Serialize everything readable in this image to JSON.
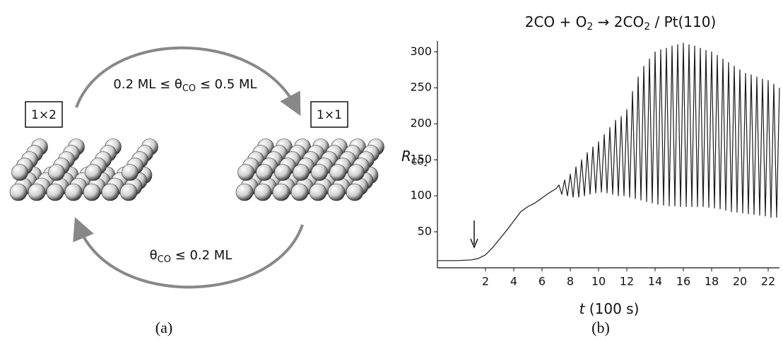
{
  "panel_a": {
    "left_label": "1×2",
    "right_label": "1×1",
    "top_condition": {
      "before": "0.2 ML ≤ θ",
      "sub": "CO",
      "after": " ≤ 0.5 ML"
    },
    "bottom_condition": {
      "before": "θ",
      "sub": "CO",
      "after": " ≤ 0.2 ML"
    },
    "caption": "(a)"
  },
  "chart_data": {
    "type": "line",
    "title": {
      "parts": [
        "2CO + O",
        "2",
        " → 2CO",
        "2",
        " / Pt(110)"
      ]
    },
    "y_label": {
      "main": "R",
      "sub": "CO",
      "subsub": "2"
    },
    "x_label": {
      "var": "t",
      "unit": " (100 s)"
    },
    "caption": "(b)",
    "color": "#1a1a1a",
    "xlim": [
      -1.4,
      22.8
    ],
    "ylim": [
      0,
      315
    ],
    "xticks": [
      2,
      4,
      6,
      8,
      10,
      12,
      14,
      16,
      18,
      20,
      22
    ],
    "yticks": [
      50,
      100,
      150,
      200,
      250,
      300
    ],
    "x": [
      -1.4,
      0,
      1,
      1.5,
      2,
      2.5,
      3,
      3.5,
      4,
      4.5,
      5,
      5.5,
      6,
      6.5,
      7,
      7.2,
      7.4,
      7.6,
      7.8,
      8.0,
      8.2,
      8.4,
      8.6,
      8.8,
      9.0,
      9.2,
      9.4,
      9.6,
      9.8,
      10.0,
      10.2,
      10.4,
      10.6,
      10.8,
      11.0,
      11.2,
      11.4,
      11.6,
      11.8,
      12.0,
      12.2,
      12.4,
      12.6,
      12.8,
      13.0,
      13.2,
      13.4,
      13.6,
      13.8,
      14.0,
      14.2,
      14.4,
      14.6,
      14.8,
      15.0,
      15.2,
      15.4,
      15.6,
      15.8,
      16.0,
      16.2,
      16.4,
      16.6,
      16.8,
      17.0,
      17.2,
      17.4,
      17.6,
      17.8,
      18.0,
      18.2,
      18.4,
      18.6,
      18.8,
      19.0,
      19.2,
      19.4,
      19.6,
      19.8,
      20.0,
      20.2,
      20.4,
      20.6,
      20.8,
      21.0,
      21.2,
      21.4,
      21.6,
      21.8,
      22.0,
      22.2,
      22.4,
      22.6,
      22.8
    ],
    "values": [
      10,
      10,
      11,
      13,
      18,
      28,
      40,
      52,
      65,
      78,
      85,
      90,
      97,
      104,
      110,
      115,
      102,
      122,
      100,
      130,
      98,
      140,
      98,
      150,
      100,
      160,
      102,
      168,
      104,
      175,
      105,
      185,
      104,
      195,
      102,
      205,
      100,
      210,
      100,
      220,
      98,
      245,
      96,
      265,
      94,
      280,
      92,
      290,
      90,
      300,
      88,
      303,
      87,
      305,
      86,
      308,
      86,
      310,
      85,
      312,
      85,
      310,
      85,
      308,
      85,
      305,
      85,
      302,
      84,
      300,
      83,
      295,
      82,
      290,
      80,
      285,
      78,
      280,
      77,
      275,
      76,
      270,
      75,
      268,
      74,
      265,
      73,
      262,
      72,
      260,
      70,
      255,
      70,
      250
    ]
  }
}
